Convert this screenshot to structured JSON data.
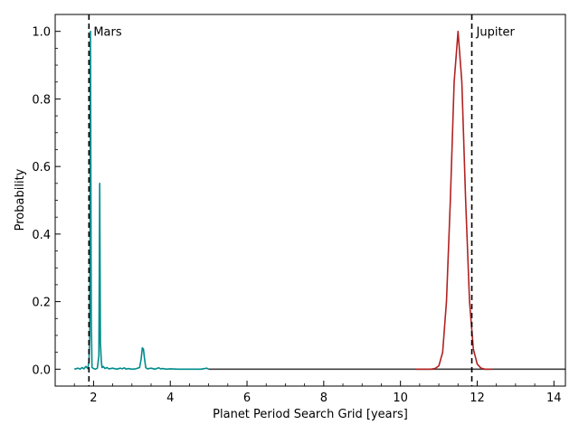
{
  "chart_data": {
    "type": "line",
    "xlabel": "Planet Period Search Grid [years]",
    "ylabel": "Probability",
    "xlim": [
      1.0,
      14.3
    ],
    "ylim": [
      -0.05,
      1.05
    ],
    "xticks": [
      2,
      4,
      6,
      8,
      10,
      12,
      14
    ],
    "xtick_labels": [
      "2",
      "4",
      "6",
      "8",
      "10",
      "12",
      "14"
    ],
    "yticks": [
      0.0,
      0.2,
      0.4,
      0.6,
      0.8,
      1.0
    ],
    "ytick_labels": [
      "0.0",
      "0.2",
      "0.4",
      "0.6",
      "0.8",
      "1.0"
    ],
    "grid": false,
    "series": [
      {
        "color": "#008b8b",
        "x": [
          1.5,
          1.6,
          1.65,
          1.7,
          1.75,
          1.8,
          1.85,
          1.88,
          1.9,
          1.92,
          1.94,
          1.96,
          2.0,
          2.05,
          2.1,
          2.14,
          2.16,
          2.18,
          2.2,
          2.22,
          2.25,
          2.3,
          2.35,
          2.4,
          2.5,
          2.6,
          2.7,
          2.75,
          2.8,
          2.85,
          2.9,
          3.0,
          3.1,
          3.2,
          3.24,
          3.27,
          3.3,
          3.33,
          3.36,
          3.4,
          3.5,
          3.6,
          3.7,
          3.75,
          3.8,
          3.9,
          4.0,
          4.2,
          4.5,
          4.8,
          4.9,
          4.95,
          5.0
        ],
        "y": [
          0.0,
          0.003,
          0.0,
          0.005,
          0.001,
          0.008,
          0.002,
          0.022,
          0.1,
          1.0,
          0.15,
          0.005,
          0.002,
          0.0,
          0.003,
          0.04,
          0.55,
          0.08,
          0.028,
          0.005,
          0.008,
          0.002,
          0.005,
          0.001,
          0.003,
          0.0,
          0.003,
          0.001,
          0.004,
          0.0,
          0.002,
          0.0,
          0.001,
          0.005,
          0.03,
          0.063,
          0.06,
          0.03,
          0.005,
          0.001,
          0.003,
          0.0,
          0.004,
          0.001,
          0.002,
          0.0,
          0.001,
          0.0,
          0.0,
          0.0,
          0.002,
          0.003,
          0.0
        ]
      },
      {
        "color": "#404040",
        "x": [
          5.0,
          14.3
        ],
        "y": [
          0.0,
          0.0
        ]
      },
      {
        "color": "#b22222",
        "x": [
          10.4,
          10.6,
          10.8,
          10.9,
          11.0,
          11.1,
          11.2,
          11.3,
          11.4,
          11.5,
          11.6,
          11.7,
          11.8,
          11.9,
          12.0,
          12.1,
          12.2,
          12.4
        ],
        "y": [
          0.0,
          0.0,
          0.0,
          0.002,
          0.01,
          0.05,
          0.2,
          0.5,
          0.85,
          1.0,
          0.85,
          0.5,
          0.2,
          0.06,
          0.015,
          0.003,
          0.0,
          0.0
        ]
      }
    ],
    "vlines": [
      {
        "x": 1.88,
        "label": "Mars"
      },
      {
        "x": 11.86,
        "label": "Jupiter"
      }
    ]
  }
}
